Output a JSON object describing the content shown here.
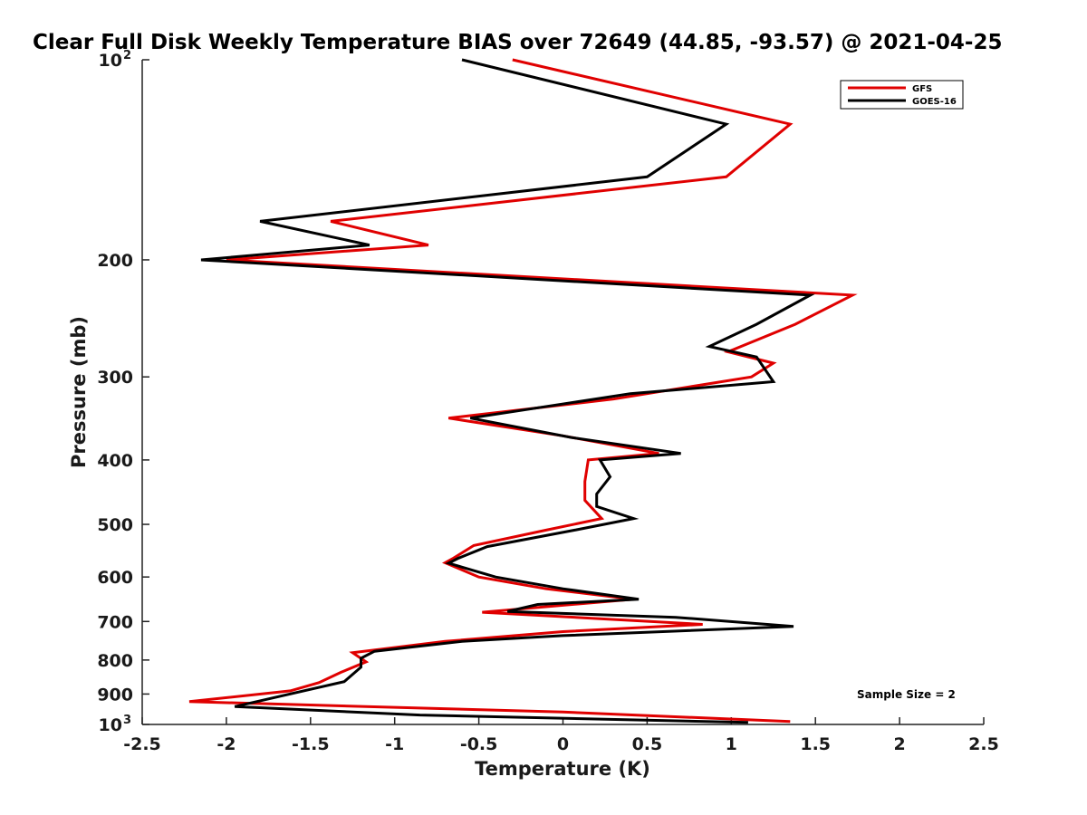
{
  "chart_data": {
    "type": "line",
    "title": "Clear Full Disk Weekly Temperature BIAS over 72649 (44.85, -93.57) @ 2021-04-25",
    "xlabel": "Temperature (K)",
    "ylabel": "Pressure (mb)",
    "xlim": [
      -2.5,
      2.5
    ],
    "ylim": [
      100,
      1000
    ],
    "y_scale": "log",
    "y_reversed": true,
    "grid": false,
    "legend_position": "top-right",
    "x_ticks": [
      "-2.5",
      "-2",
      "-1.5",
      "-1",
      "-0.5",
      "0",
      "0.5",
      "1",
      "1.5",
      "2",
      "2.5"
    ],
    "y_ticks": [
      {
        "value": 100,
        "label": "10",
        "sup": "2"
      },
      {
        "value": 200,
        "label": "200",
        "sup": ""
      },
      {
        "value": 300,
        "label": "300",
        "sup": ""
      },
      {
        "value": 400,
        "label": "400",
        "sup": ""
      },
      {
        "value": 500,
        "label": "500",
        "sup": ""
      },
      {
        "value": 600,
        "label": "600",
        "sup": ""
      },
      {
        "value": 700,
        "label": "700",
        "sup": ""
      },
      {
        "value": 800,
        "label": "800",
        "sup": ""
      },
      {
        "value": 900,
        "label": "900",
        "sup": ""
      },
      {
        "value": 1000,
        "label": "10",
        "sup": "3"
      }
    ],
    "series": [
      {
        "name": "GFS",
        "color": "#e00000",
        "points": [
          [
            -0.3,
            100
          ],
          [
            1.35,
            125
          ],
          [
            0.97,
            150
          ],
          [
            -1.38,
            175
          ],
          [
            -0.8,
            190
          ],
          [
            -2.0,
            200
          ],
          [
            1.72,
            226
          ],
          [
            1.38,
            250
          ],
          [
            0.98,
            275
          ],
          [
            1.25,
            286
          ],
          [
            1.12,
            300
          ],
          [
            0.3,
            324
          ],
          [
            -0.68,
            346
          ],
          [
            0.0,
            368
          ],
          [
            0.57,
            391
          ],
          [
            0.15,
            400
          ],
          [
            0.13,
            431
          ],
          [
            0.13,
            460
          ],
          [
            0.23,
            490
          ],
          [
            -0.1,
            510
          ],
          [
            -0.53,
            538
          ],
          [
            -0.65,
            562
          ],
          [
            -0.7,
            571
          ],
          [
            -0.5,
            600
          ],
          [
            -0.1,
            625
          ],
          [
            0.42,
            648
          ],
          [
            -0.48,
            678
          ],
          [
            0.83,
            707
          ],
          [
            0.0,
            725
          ],
          [
            -0.7,
            750
          ],
          [
            -1.25,
            780
          ],
          [
            -1.17,
            805
          ],
          [
            -1.32,
            835
          ],
          [
            -1.45,
            865
          ],
          [
            -1.62,
            890
          ],
          [
            -2.22,
            924
          ],
          [
            0.0,
            958
          ],
          [
            1.35,
            990
          ]
        ]
      },
      {
        "name": "GOES-16",
        "color": "#000000",
        "points": [
          [
            -0.6,
            100
          ],
          [
            0.97,
            125
          ],
          [
            0.5,
            150
          ],
          [
            -1.8,
            175
          ],
          [
            -1.15,
            190
          ],
          [
            -2.15,
            200
          ],
          [
            1.47,
            226
          ],
          [
            1.15,
            250
          ],
          [
            0.87,
            270
          ],
          [
            1.15,
            280
          ],
          [
            1.25,
            305
          ],
          [
            0.4,
            318
          ],
          [
            -0.55,
            346
          ],
          [
            0.05,
            370
          ],
          [
            0.7,
            391
          ],
          [
            0.22,
            400
          ],
          [
            0.28,
            424
          ],
          [
            0.2,
            450
          ],
          [
            0.2,
            470
          ],
          [
            0.42,
            490
          ],
          [
            0.07,
            510
          ],
          [
            -0.45,
            540
          ],
          [
            -0.62,
            562
          ],
          [
            -0.68,
            572
          ],
          [
            -0.4,
            600
          ],
          [
            0.0,
            625
          ],
          [
            0.45,
            648
          ],
          [
            -0.15,
            660
          ],
          [
            -0.33,
            676
          ],
          [
            0.67,
            690
          ],
          [
            1.37,
            712
          ],
          [
            0.0,
            735
          ],
          [
            -0.6,
            750
          ],
          [
            -1.12,
            776
          ],
          [
            -1.2,
            795
          ],
          [
            -1.2,
            820
          ],
          [
            -1.3,
            862
          ],
          [
            -1.95,
            940
          ],
          [
            -0.85,
            968
          ],
          [
            1.1,
            993
          ]
        ]
      }
    ],
    "annotations": [
      {
        "text": "Sample Size = 2"
      }
    ]
  }
}
